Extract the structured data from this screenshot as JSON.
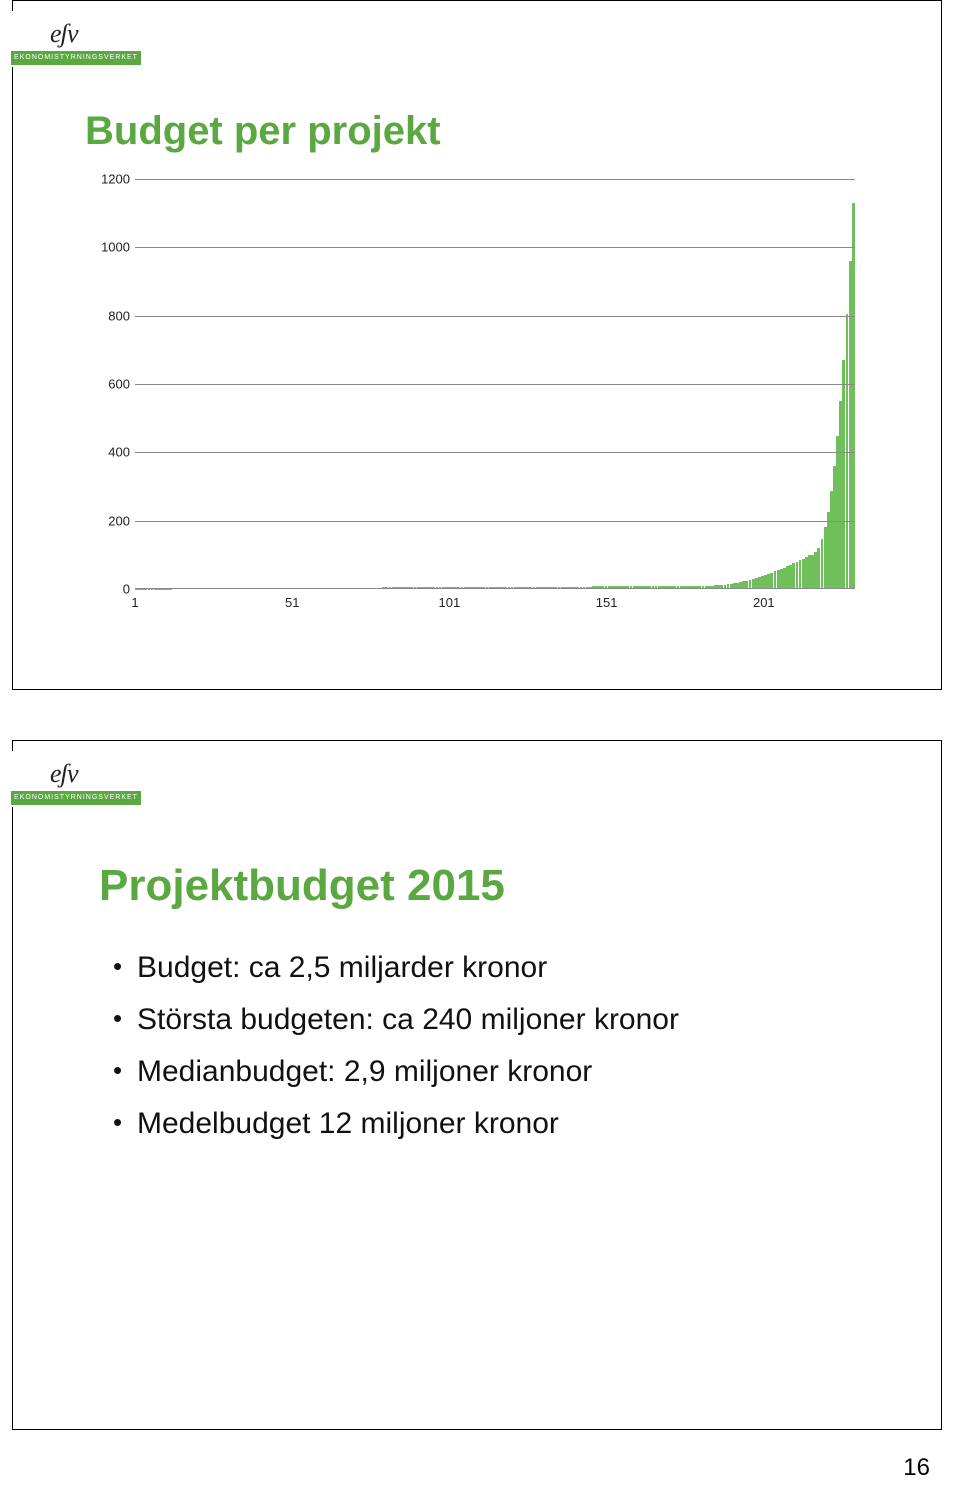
{
  "page_number": "16",
  "logo_subtitle": "EKONOMISTYRNINGSVERKET",
  "logo_text": "eʃv",
  "slide1": {
    "title": "Budget per projekt",
    "chart": {
      "type": "bar",
      "ylim": [
        0,
        1200
      ],
      "ytick_step": 200,
      "yticks": [
        0,
        200,
        400,
        600,
        800,
        1000,
        1200
      ],
      "xlabels": [
        1,
        51,
        101,
        151,
        201
      ],
      "xmax": 230,
      "bar_color": "#6fbf5b",
      "grid_color": "#888888",
      "background_color": "#ffffff",
      "label_fontsize": 13
    }
  },
  "slide2": {
    "title": "Projektbudget 2015",
    "bullets": [
      "Budget: ca 2,5 miljarder kronor",
      "Största budgeten: ca 240 miljoner kronor",
      "Medianbudget: 2,9 miljoner kronor",
      "Medelbudget 12 miljoner kronor"
    ]
  }
}
